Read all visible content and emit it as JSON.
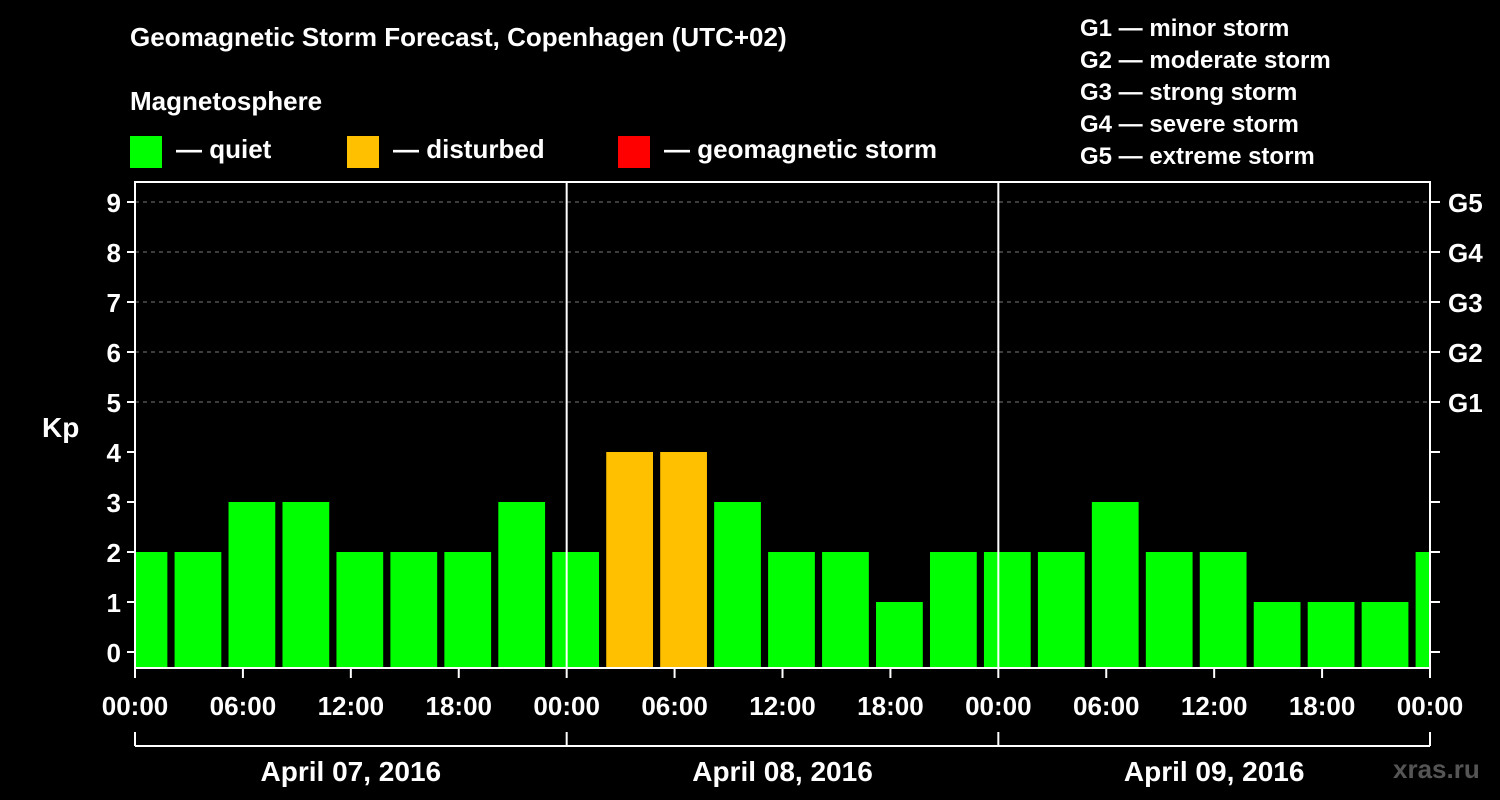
{
  "title": "Geomagnetic Storm Forecast, Copenhagen (UTC+02)",
  "subtitle": "Magnetosphere",
  "legend": [
    {
      "label": "— quiet",
      "color": "#00ff00"
    },
    {
      "label": "— disturbed",
      "color": "#ffc000"
    },
    {
      "label": "— geomagnetic storm",
      "color": "#ff0000"
    }
  ],
  "storm_levels": [
    "G1 — minor storm",
    "G2 — moderate storm",
    "G3 — strong storm",
    "G4 — severe storm",
    "G5 — extreme storm"
  ],
  "watermark": "xras.ru",
  "chart_data": {
    "type": "bar",
    "ylabel": "Kp",
    "ylim": [
      0,
      9
    ],
    "yticks": [
      0,
      1,
      2,
      3,
      4,
      5,
      6,
      7,
      8,
      9
    ],
    "right_ticks": [
      {
        "value": 5,
        "label": "G1"
      },
      {
        "value": 6,
        "label": "G2"
      },
      {
        "value": 7,
        "label": "G3"
      },
      {
        "value": 8,
        "label": "G4"
      },
      {
        "value": 9,
        "label": "G5"
      }
    ],
    "grid": "horizontal dashed at 5–9",
    "xlim_hours": [
      0,
      72
    ],
    "xticks": [
      {
        "hour": 0,
        "label": "00:00"
      },
      {
        "hour": 6,
        "label": "06:00"
      },
      {
        "hour": 12,
        "label": "12:00"
      },
      {
        "hour": 18,
        "label": "18:00"
      },
      {
        "hour": 24,
        "label": "00:00"
      },
      {
        "hour": 30,
        "label": "06:00"
      },
      {
        "hour": 36,
        "label": "12:00"
      },
      {
        "hour": 42,
        "label": "18:00"
      },
      {
        "hour": 48,
        "label": "00:00"
      },
      {
        "hour": 54,
        "label": "06:00"
      },
      {
        "hour": 60,
        "label": "12:00"
      },
      {
        "hour": 66,
        "label": "18:00"
      },
      {
        "hour": 72,
        "label": "00:00"
      }
    ],
    "days": [
      {
        "label": "April 07, 2016",
        "start": 0,
        "end": 24
      },
      {
        "label": "April 08, 2016",
        "start": 24,
        "end": 48
      },
      {
        "label": "April 09, 2016",
        "start": 48,
        "end": 72
      }
    ],
    "bars": [
      {
        "start": 0,
        "end": 1.8,
        "kp": 2,
        "status": "quiet"
      },
      {
        "start": 2.2,
        "end": 4.8,
        "kp": 2,
        "status": "quiet"
      },
      {
        "start": 5.2,
        "end": 7.8,
        "kp": 3,
        "status": "quiet"
      },
      {
        "start": 8.2,
        "end": 10.8,
        "kp": 3,
        "status": "quiet"
      },
      {
        "start": 11.2,
        "end": 13.8,
        "kp": 2,
        "status": "quiet"
      },
      {
        "start": 14.2,
        "end": 16.8,
        "kp": 2,
        "status": "quiet"
      },
      {
        "start": 17.2,
        "end": 19.8,
        "kp": 2,
        "status": "quiet"
      },
      {
        "start": 20.2,
        "end": 22.8,
        "kp": 3,
        "status": "quiet"
      },
      {
        "start": 23.2,
        "end": 25.8,
        "kp": 2,
        "status": "quiet"
      },
      {
        "start": 26.2,
        "end": 28.8,
        "kp": 4,
        "status": "disturbed"
      },
      {
        "start": 29.2,
        "end": 31.8,
        "kp": 4,
        "status": "disturbed"
      },
      {
        "start": 32.2,
        "end": 34.8,
        "kp": 3,
        "status": "quiet"
      },
      {
        "start": 35.2,
        "end": 37.8,
        "kp": 2,
        "status": "quiet"
      },
      {
        "start": 38.2,
        "end": 40.8,
        "kp": 2,
        "status": "quiet"
      },
      {
        "start": 41.2,
        "end": 43.8,
        "kp": 1,
        "status": "quiet"
      },
      {
        "start": 44.2,
        "end": 46.8,
        "kp": 2,
        "status": "quiet"
      },
      {
        "start": 47.2,
        "end": 49.8,
        "kp": 2,
        "status": "quiet"
      },
      {
        "start": 50.2,
        "end": 52.8,
        "kp": 2,
        "status": "quiet"
      },
      {
        "start": 53.2,
        "end": 55.8,
        "kp": 3,
        "status": "quiet"
      },
      {
        "start": 56.2,
        "end": 58.8,
        "kp": 2,
        "status": "quiet"
      },
      {
        "start": 59.2,
        "end": 61.8,
        "kp": 2,
        "status": "quiet"
      },
      {
        "start": 62.2,
        "end": 64.8,
        "kp": 1,
        "status": "quiet"
      },
      {
        "start": 65.2,
        "end": 67.8,
        "kp": 1,
        "status": "quiet"
      },
      {
        "start": 68.2,
        "end": 70.8,
        "kp": 1,
        "status": "quiet"
      },
      {
        "start": 71.2,
        "end": 72,
        "kp": 2,
        "status": "quiet"
      }
    ],
    "status_colors": {
      "quiet": "#00ff00",
      "disturbed": "#ffc000",
      "storm": "#ff0000"
    }
  }
}
